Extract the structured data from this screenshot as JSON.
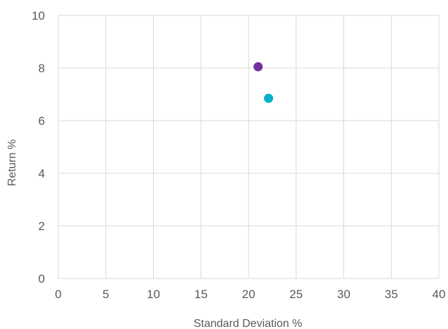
{
  "chart_data": {
    "type": "scatter",
    "title": "",
    "xlabel": "Standard Deviation %",
    "ylabel": "Return %",
    "xlim": [
      0,
      40
    ],
    "ylim": [
      0,
      10
    ],
    "x_ticks": [
      0,
      5,
      10,
      15,
      20,
      25,
      30,
      35,
      40
    ],
    "y_ticks": [
      0,
      2,
      4,
      6,
      8,
      10
    ],
    "grid": true,
    "legend": "none",
    "series": [
      {
        "color": "#7030a0",
        "points": [
          {
            "x": 21.0,
            "y": 8.05
          }
        ]
      },
      {
        "color": "#00b0c8",
        "points": [
          {
            "x": 22.1,
            "y": 6.85
          }
        ]
      }
    ]
  }
}
